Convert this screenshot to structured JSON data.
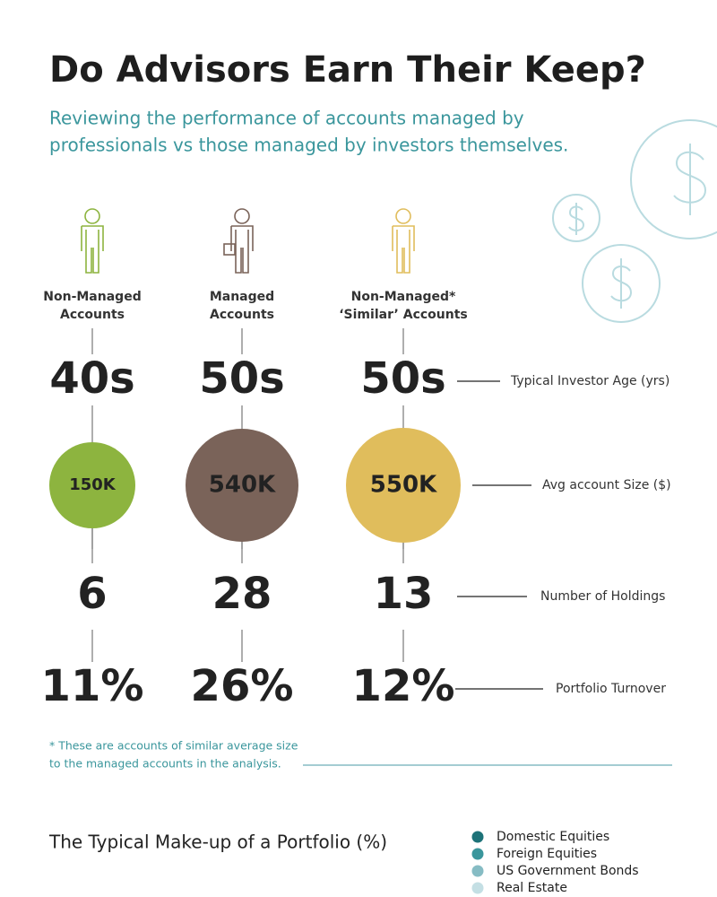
{
  "header": {
    "title": "Do Advisors Earn Their Keep?",
    "subtitle": [
      "Reviewing the performance of accounts managed by",
      "professionals vs those managed by investors themselves."
    ]
  },
  "columns": [
    {
      "label": [
        "Non-Managed",
        "Accounts"
      ],
      "color": "#8db43f",
      "age": "40s",
      "account_size": "150K",
      "holdings": "6",
      "turnover": "11%"
    },
    {
      "label": [
        "Managed",
        "Accounts"
      ],
      "color": "#7a6359",
      "age": "50s",
      "account_size": "540K",
      "holdings": "28",
      "turnover": "26%"
    },
    {
      "label": [
        "Non-Managed*",
        "‘Similar’ Accounts"
      ],
      "color": "#e0bd5c",
      "age": "50s",
      "account_size": "550K",
      "holdings": "13",
      "turnover": "12%"
    }
  ],
  "metrics": [
    "Typical Investor Age (yrs)",
    "Avg account Size ($)",
    "Number of Holdings",
    "Portfolio Turnover"
  ],
  "footnote": [
    "* These are accounts of similar average size",
    "to the managed accounts in the analysis."
  ],
  "portfolio": {
    "title": "The Typical Make-up of a Portfolio (%)",
    "legend": [
      {
        "name": "Domestic Equities",
        "color": "#1d7278"
      },
      {
        "name": "Foreign Equities",
        "color": "#3a969c"
      },
      {
        "name": "US Government Bonds",
        "color": "#86bcc4"
      },
      {
        "name": "Real Estate",
        "color": "#c4dfe4"
      }
    ]
  }
}
